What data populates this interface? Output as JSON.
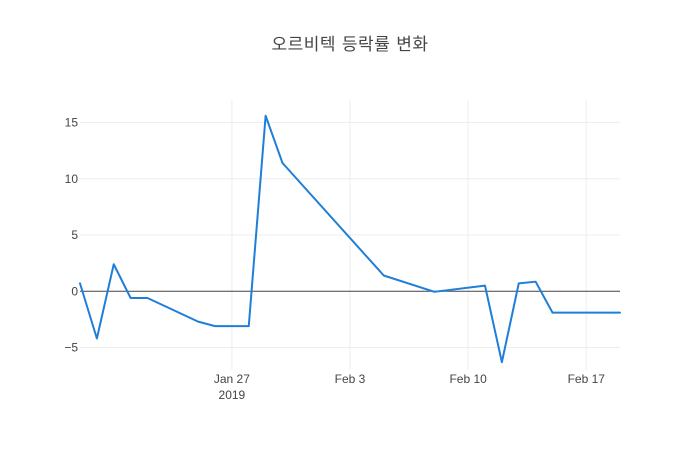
{
  "title": "오르비텍 등락률 변화",
  "chart_data": {
    "type": "line",
    "title": "오르비텍 등락률 변화",
    "xlabel": "",
    "ylabel": "",
    "xlim": [
      "2019-01-18",
      "2019-02-19"
    ],
    "ylim": [
      -7,
      17
    ],
    "grid": true,
    "zero_line": true,
    "colors": {
      "line": "#1f7fd8",
      "grid": "#eeeeee",
      "zero": "#444444"
    },
    "x_ticks": [
      {
        "date": "2019-01-27",
        "label": "Jan 27",
        "sublabel": "2019"
      },
      {
        "date": "2019-02-03",
        "label": "Feb 3",
        "sublabel": ""
      },
      {
        "date": "2019-02-10",
        "label": "Feb 10",
        "sublabel": ""
      },
      {
        "date": "2019-02-17",
        "label": "Feb 17",
        "sublabel": ""
      }
    ],
    "y_ticks": [
      {
        "value": 15,
        "label": "15"
      },
      {
        "value": 10,
        "label": "10"
      },
      {
        "value": 5,
        "label": "5"
      },
      {
        "value": 0,
        "label": "0"
      },
      {
        "value": -5,
        "label": "−5"
      }
    ],
    "series": [
      {
        "x": [
          "2019-01-18",
          "2019-01-19",
          "2019-01-20",
          "2019-01-21",
          "2019-01-22",
          "2019-01-25",
          "2019-01-26",
          "2019-01-28",
          "2019-01-29",
          "2019-01-30",
          "2019-02-05",
          "2019-02-08",
          "2019-02-11",
          "2019-02-12",
          "2019-02-13",
          "2019-02-14",
          "2019-02-15",
          "2019-02-18",
          "2019-02-19"
        ],
        "values": [
          0.7,
          -4.2,
          2.4,
          -0.6,
          -0.6,
          -2.7,
          -3.1,
          -3.1,
          15.6,
          11.4,
          1.4,
          -0.05,
          0.5,
          -6.3,
          0.7,
          0.85,
          -1.9,
          -1.9,
          -1.9
        ]
      }
    ]
  }
}
